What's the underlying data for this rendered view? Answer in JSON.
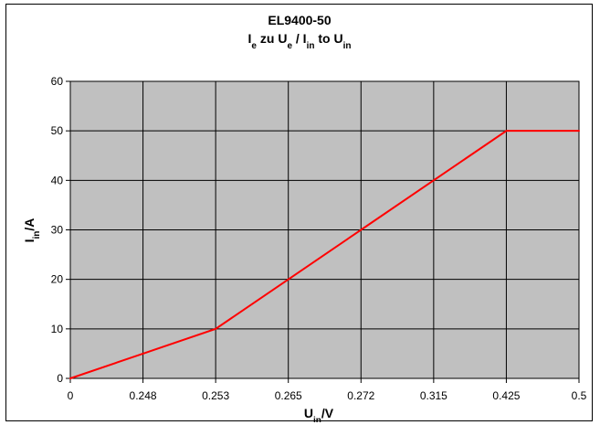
{
  "chart_data": {
    "type": "line",
    "title": "EL9400-50",
    "subtitle": {
      "segments": [
        {
          "text": "I",
          "sub": false
        },
        {
          "text": "e",
          "sub": true
        },
        {
          "text": " zu U",
          "sub": false
        },
        {
          "text": "e",
          "sub": true
        },
        {
          "text": " / I",
          "sub": false
        },
        {
          "text": "in",
          "sub": true
        },
        {
          "text": " to U",
          "sub": false
        },
        {
          "text": "in",
          "sub": true
        }
      ]
    },
    "xlabel": {
      "segments": [
        {
          "text": "U",
          "sub": false
        },
        {
          "text": "in",
          "sub": true
        },
        {
          "text": "/V",
          "sub": false
        }
      ]
    },
    "ylabel": {
      "segments": [
        {
          "text": "I",
          "sub": false
        },
        {
          "text": "in",
          "sub": true
        },
        {
          "text": "/A",
          "sub": false
        }
      ]
    },
    "categories": [
      "0",
      "0.248",
      "0.253",
      "0.265",
      "0.272",
      "0.315",
      "0.425",
      "0.5"
    ],
    "series": [
      {
        "values": [
          0,
          5,
          10,
          20,
          30,
          40,
          50,
          50
        ],
        "color": "#ff0000"
      }
    ],
    "ylim": [
      0,
      60
    ],
    "yticks": [
      0,
      10,
      20,
      30,
      40,
      50,
      60
    ],
    "grid": true,
    "plot_background": "#c0c0c0",
    "grid_color": "#000000"
  }
}
